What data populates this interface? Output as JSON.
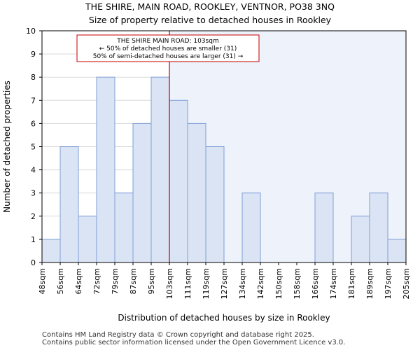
{
  "chart_data": {
    "type": "bar",
    "title": "THE SHIRE, MAIN ROAD, ROOKLEY, VENTNOR, PO38 3NQ",
    "subtitle": "Size of property relative to detached houses in Rookley",
    "xlabel": "Distribution of detached houses by size in Rookley",
    "ylabel": "Number of detached properties",
    "ylim": [
      0,
      10
    ],
    "yticks": [
      "0",
      "1",
      "2",
      "3",
      "4",
      "5",
      "6",
      "7",
      "8",
      "9",
      "10"
    ],
    "edges": [
      "48sqm",
      "56sqm",
      "64sqm",
      "72sqm",
      "79sqm",
      "87sqm",
      "95sqm",
      "103sqm",
      "111sqm",
      "119sqm",
      "127sqm",
      "134sqm",
      "142sqm",
      "150sqm",
      "158sqm",
      "166sqm",
      "174sqm",
      "181sqm",
      "189sqm",
      "197sqm",
      "205sqm"
    ],
    "values": [
      1,
      5,
      2,
      8,
      3,
      6,
      8,
      7,
      6,
      5,
      0,
      3,
      0,
      0,
      0,
      3,
      0,
      2,
      3,
      1
    ],
    "marker_bin": 7,
    "annotation": {
      "line1": "THE SHIRE MAIN ROAD: 103sqm",
      "line2": "← 50% of detached houses are smaller (31)",
      "line3": "50% of semi-detached houses are larger (31) →"
    },
    "colors": {
      "bar_left": "#dbe4f4",
      "bar_right": "#dbe4f4",
      "bar_edge": "#7f9fd7",
      "highlight_bg": "#edf2fb",
      "marker": "#c00000",
      "grid": "#d9d9d9"
    }
  },
  "footer": {
    "line1": "Contains HM Land Registry data © Crown copyright and database right 2025.",
    "line2": "Contains public sector information licensed under the Open Government Licence v3.0."
  }
}
